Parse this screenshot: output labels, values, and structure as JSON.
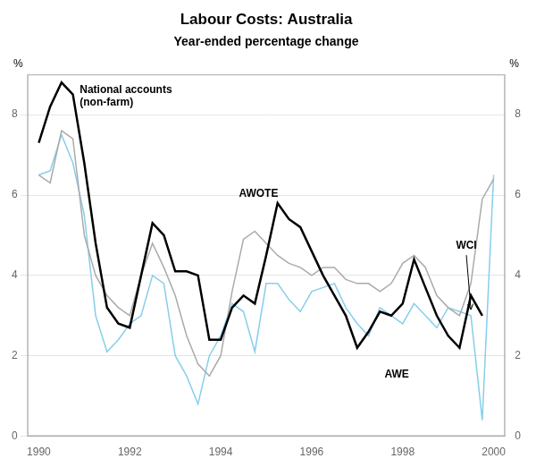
{
  "chart_data": {
    "type": "line",
    "title": "Labour Costs: Australia",
    "subtitle": "Year-ended percentage change",
    "y_label": "%",
    "y2_label": "%",
    "xlim": [
      1989.75,
      2000.25
    ],
    "xticks": [
      1990,
      1992,
      1994,
      1996,
      1998,
      2000
    ],
    "ylim": [
      0,
      9
    ],
    "yticks": [
      0,
      2,
      4,
      6,
      8
    ],
    "y2lim": [
      0,
      9
    ],
    "y2ticks": [
      0,
      2,
      4,
      6,
      8
    ],
    "grid": "y",
    "annotations": [
      "National accounts\n(non-farm)",
      "AWOTE",
      "AWE",
      "WCI"
    ],
    "series": [
      {
        "color": "#87CEEB",
        "x": [
          1990.0,
          1990.25,
          1990.5,
          1990.75,
          1991.0,
          1991.25,
          1991.5,
          1991.75,
          1992.0,
          1992.25,
          1992.5,
          1992.75,
          1993.0,
          1993.25,
          1993.5,
          1993.75,
          1994.0,
          1994.25,
          1994.5,
          1994.75,
          1995.0,
          1995.25,
          1995.5,
          1995.75,
          1996.0,
          1996.25,
          1996.5,
          1996.75,
          1997.0,
          1997.25,
          1997.5,
          1997.75,
          1998.0,
          1998.25,
          1998.5,
          1998.75,
          1999.0,
          1999.25,
          1999.5,
          1999.75,
          2000.0
        ],
        "values": [
          6.5,
          6.6,
          7.5,
          6.8,
          5.5,
          3.0,
          2.1,
          2.4,
          2.8,
          3.0,
          4.0,
          3.8,
          2.0,
          1.5,
          0.8,
          2.0,
          2.5,
          3.3,
          3.1,
          2.1,
          3.8,
          3.8,
          3.4,
          3.1,
          3.6,
          3.7,
          3.8,
          3.2,
          2.8,
          2.5,
          3.2,
          3.0,
          2.8,
          3.3,
          3.0,
          2.7,
          3.2,
          3.1,
          3.0,
          0.4,
          6.5
        ]
      },
      {
        "color": "#aaaaaa",
        "x": [
          1990.0,
          1990.25,
          1990.5,
          1990.75,
          1991.0,
          1991.25,
          1991.5,
          1991.75,
          1992.0,
          1992.25,
          1992.5,
          1992.75,
          1993.0,
          1993.25,
          1993.5,
          1993.75,
          1994.0,
          1994.25,
          1994.5,
          1994.75,
          1995.0,
          1995.25,
          1995.5,
          1995.75,
          1996.0,
          1996.25,
          1996.5,
          1996.75,
          1997.0,
          1997.25,
          1997.5,
          1997.75,
          1998.0,
          1998.25,
          1998.5,
          1998.75,
          1999.0,
          1999.25,
          1999.5,
          1999.75,
          2000.0
        ],
        "values": [
          6.5,
          6.3,
          7.6,
          7.4,
          5.0,
          4.0,
          3.5,
          3.2,
          3.0,
          4.0,
          4.8,
          4.2,
          3.5,
          2.5,
          1.8,
          1.5,
          2.0,
          3.6,
          4.9,
          5.1,
          4.8,
          4.5,
          4.3,
          4.2,
          4.0,
          4.2,
          4.2,
          3.9,
          3.8,
          3.8,
          3.6,
          3.8,
          4.3,
          4.5,
          4.2,
          3.5,
          3.2,
          3.0,
          3.8,
          5.9,
          6.4
        ]
      },
      {
        "color": "#000000",
        "x": [
          1990.0,
          1990.25,
          1990.5,
          1990.75,
          1991.0,
          1991.25,
          1991.5,
          1991.75,
          1992.0,
          1992.25,
          1992.5,
          1992.75,
          1993.0,
          1993.25,
          1993.5,
          1993.75,
          1994.0,
          1994.25,
          1994.5,
          1994.75,
          1995.0,
          1995.25,
          1995.5,
          1995.75,
          1996.0,
          1996.25,
          1996.5,
          1996.75,
          1997.0,
          1997.25,
          1997.5,
          1997.75,
          1998.0,
          1998.25,
          1998.5,
          1998.75,
          1999.0,
          1999.25,
          1999.5,
          1999.75
        ],
        "values": [
          7.3,
          8.2,
          8.8,
          8.5,
          6.8,
          4.8,
          3.2,
          2.8,
          2.7,
          4.0,
          5.3,
          5.0,
          4.1,
          4.1,
          4.0,
          2.4,
          2.4,
          3.2,
          3.5,
          3.3,
          4.5,
          5.8,
          5.4,
          5.2,
          4.6,
          4.0,
          3.5,
          3.0,
          2.2,
          2.6,
          3.1,
          3.0,
          3.3,
          4.4,
          3.7,
          3.0,
          2.5,
          2.2,
          3.5,
          3.0
        ]
      }
    ]
  }
}
